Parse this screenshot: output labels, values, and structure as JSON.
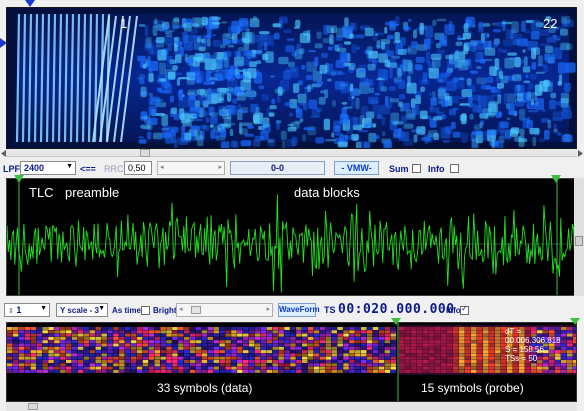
{
  "spectrogram": {
    "label_left": "1",
    "label_right": "22"
  },
  "toolbar1": {
    "lpf_label": "LPF",
    "lpf_value": "2400",
    "arrow_label": "<==",
    "rrc_label": "RRC",
    "rrc_value": "0,50",
    "readout": "0-0",
    "vmw_button": "- VMW-",
    "sum_label": "Sum",
    "info_label": "Info"
  },
  "waveform": {
    "label_tlc": "TLC",
    "label_preamble": "preamble",
    "label_data": "data blocks",
    "colors": {
      "trace": "#22e022",
      "marker": "#3cbf3c"
    }
  },
  "toolbar2": {
    "stepper_value": "1",
    "yscale_value": "Y scale - 3",
    "astime_label": "As time",
    "bright_label": "Bright",
    "waveform_button": "WaveForm",
    "ts_label": "TS",
    "ts_value": "00:020.000.000",
    "info_label": "Info"
  },
  "symbols": {
    "label_data": "33 symbols (data)",
    "label_probe": "15 symbols (probe)",
    "readout_dt": "dT = 00.006.306.818",
    "readout_s": "S = 158.56",
    "readout_tss": "TSs = 50"
  }
}
